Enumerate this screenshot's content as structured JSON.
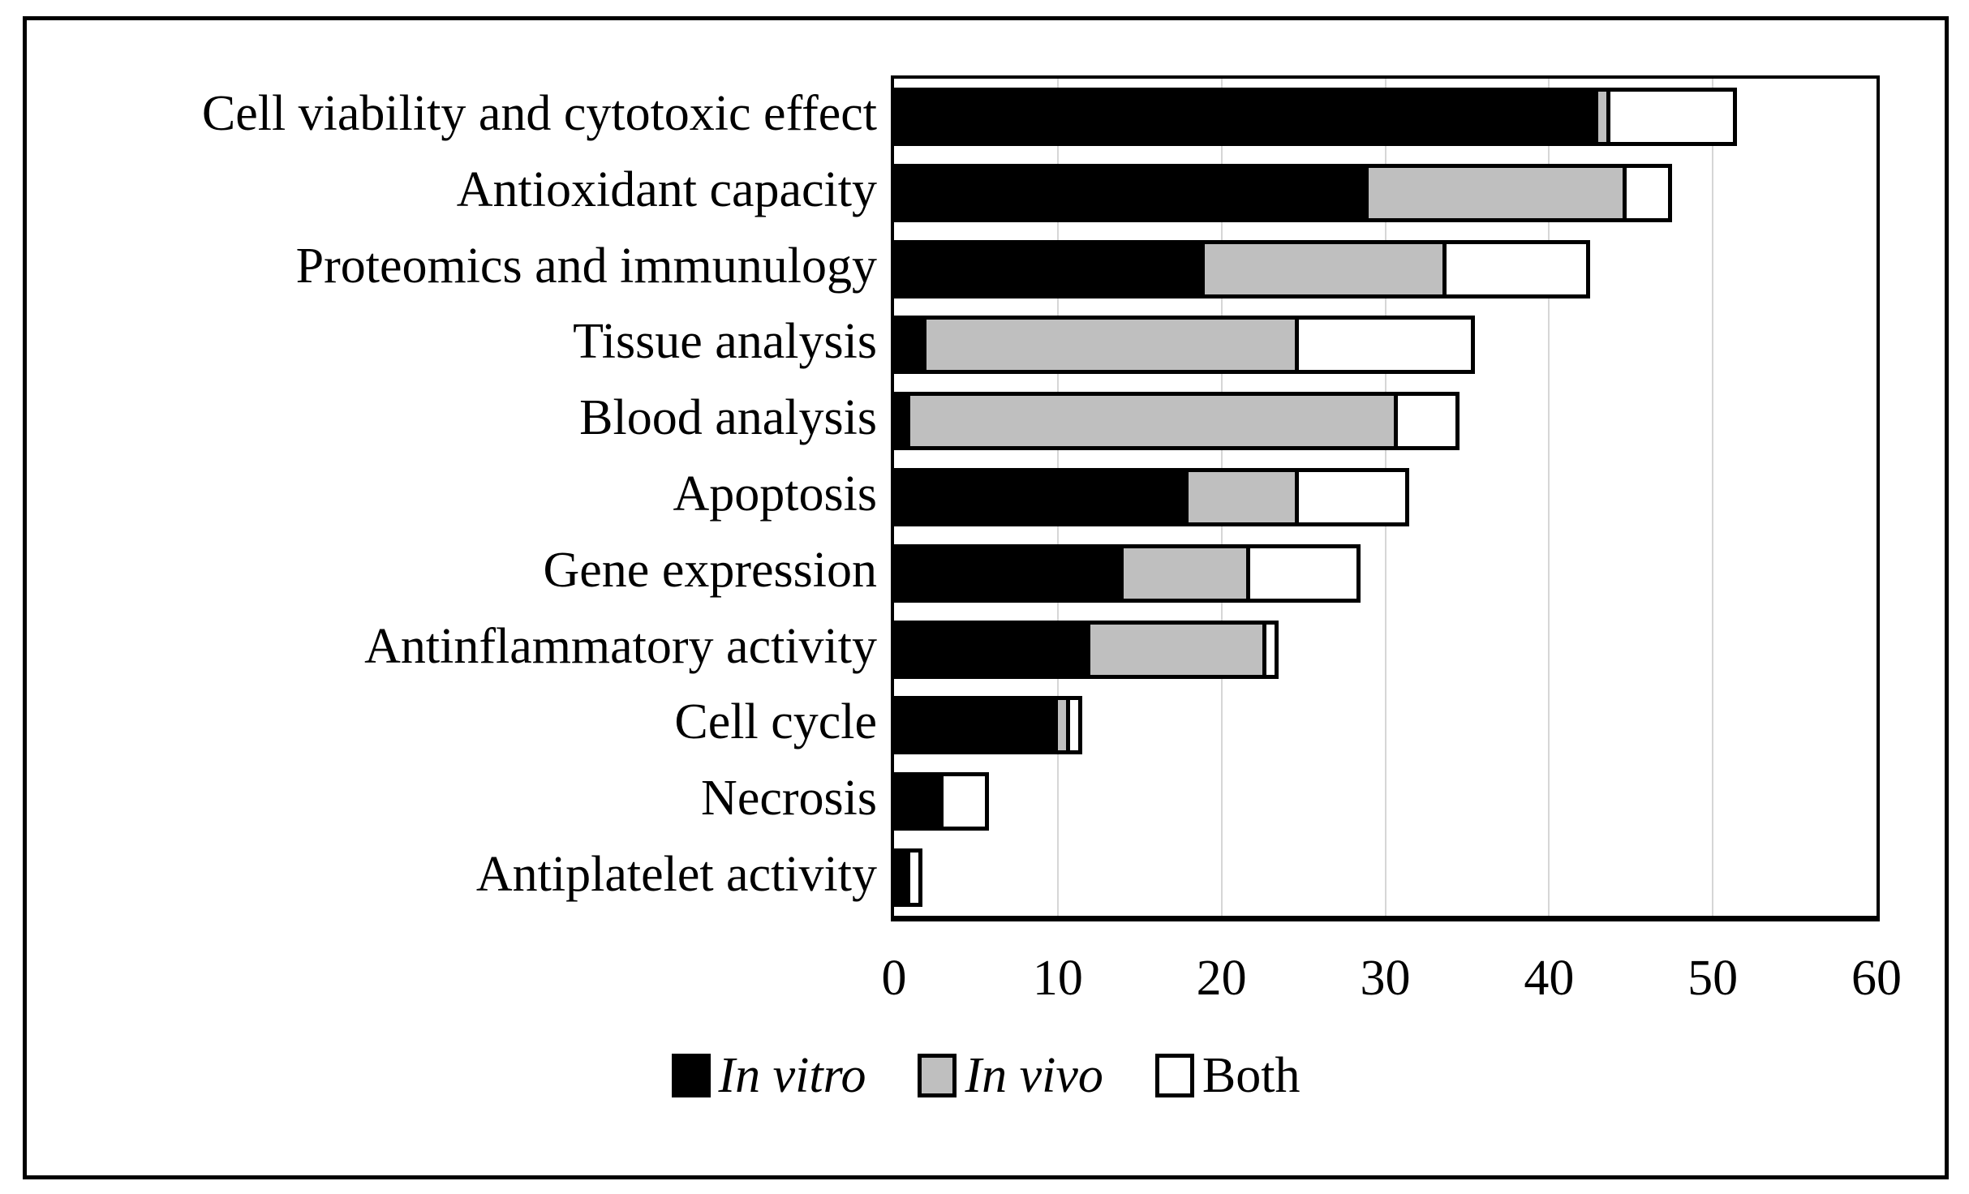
{
  "chart_data": {
    "type": "bar",
    "orientation": "horizontal-stacked",
    "categories": [
      "Cell viability and cytotoxic effect",
      "Antioxidant capacity",
      "Proteomics and immunulogy",
      "Tissue analysis",
      "Blood analysis",
      "Apoptosis",
      "Gene expression",
      "Antinflammatory activity",
      "Cell cycle",
      "Necrosis",
      "Antiplatelet activity"
    ],
    "series": [
      {
        "name": "In vitro",
        "color": "#000000",
        "values": [
          43,
          29,
          19,
          2,
          1,
          18,
          14,
          12,
          10,
          3,
          1
        ]
      },
      {
        "name": "In vivo",
        "color": "#bfbfbf",
        "values": [
          1,
          16,
          15,
          23,
          30,
          7,
          8,
          11,
          1,
          0,
          0
        ]
      },
      {
        "name": "Both",
        "color": "#ffffff",
        "values": [
          8,
          3,
          9,
          11,
          4,
          7,
          7,
          1,
          1,
          3,
          1
        ]
      }
    ],
    "totals": [
      52,
      48,
      43,
      36,
      35,
      32,
      29,
      24,
      12,
      6,
      2
    ],
    "xlim": [
      0,
      60
    ],
    "xticks": [
      0,
      10,
      20,
      30,
      40,
      50,
      60
    ],
    "xlabel": "",
    "ylabel": "",
    "title": "",
    "grid": "vertical",
    "gridline_color": "#d6d6d6",
    "legend_position": "bottom",
    "legend_italic_names": [
      "In vitro",
      "In vivo"
    ]
  }
}
